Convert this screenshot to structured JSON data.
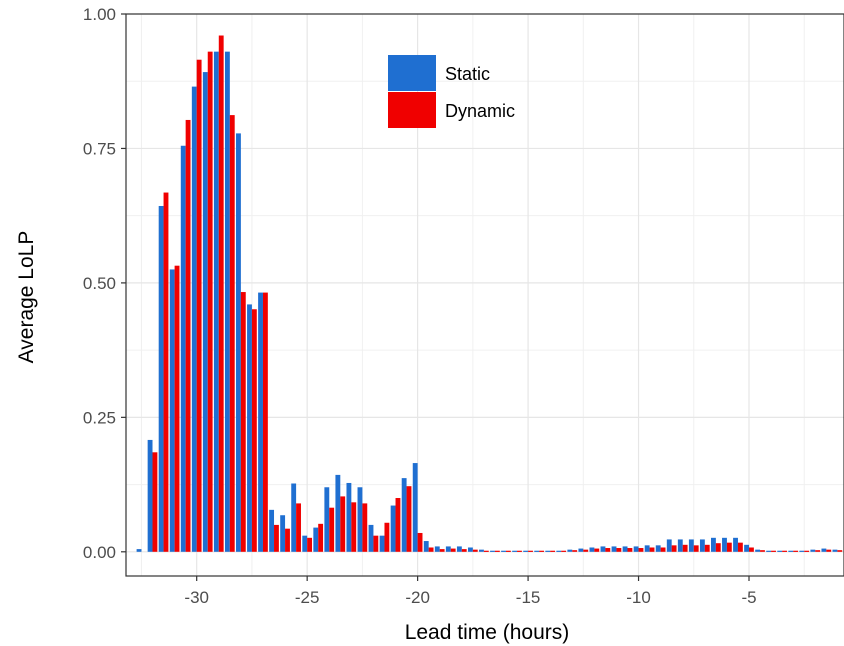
{
  "chart_data": {
    "type": "bar",
    "xlabel": "Lead time (hours)",
    "ylabel": "Average LoLP",
    "xlim": [
      -33.2,
      -0.7
    ],
    "ylim": [
      -0.045,
      1.0
    ],
    "x_ticks": [
      -30,
      -25,
      -20,
      -15,
      -10,
      -5
    ],
    "x_tick_labels": [
      "-30",
      "-25",
      "-20",
      "-15",
      "-10",
      "-5"
    ],
    "y_ticks": [
      0.0,
      0.25,
      0.5,
      0.75,
      1.0
    ],
    "y_tick_labels": [
      "0.00",
      "0.25",
      "0.50",
      "0.75",
      "1.00"
    ],
    "grid": true,
    "legend_position": "top-center",
    "x": [
      -32.5,
      -32.0,
      -31.5,
      -31.0,
      -30.5,
      -30.0,
      -29.5,
      -29.0,
      -28.5,
      -28.0,
      -27.5,
      -27.0,
      -26.5,
      -26.0,
      -25.5,
      -25.0,
      -24.5,
      -24.0,
      -23.5,
      -23.0,
      -22.5,
      -22.0,
      -21.5,
      -21.0,
      -20.5,
      -20.0,
      -19.5,
      -19.0,
      -18.5,
      -18.0,
      -17.5,
      -17.0,
      -16.5,
      -16.0,
      -15.5,
      -15.0,
      -14.5,
      -14.0,
      -13.5,
      -13.0,
      -12.5,
      -12.0,
      -11.5,
      -11.0,
      -10.5,
      -10.0,
      -9.5,
      -9.0,
      -8.5,
      -8.0,
      -7.5,
      -7.0,
      -6.5,
      -6.0,
      -5.5,
      -5.0,
      -4.5,
      -4.0,
      -3.5,
      -3.0,
      -2.5,
      -2.0,
      -1.5,
      -1.0
    ],
    "series": [
      {
        "name": "Static",
        "color": "#1f6fd1",
        "values": [
          0.005,
          0.208,
          0.643,
          0.525,
          0.755,
          0.865,
          0.892,
          0.93,
          0.93,
          0.778,
          0.46,
          0.482,
          0.078,
          0.068,
          0.127,
          0.03,
          0.045,
          0.12,
          0.143,
          0.128,
          0.12,
          0.05,
          0.03,
          0.086,
          0.137,
          0.165,
          0.02,
          0.01,
          0.01,
          0.01,
          0.008,
          0.004,
          0.002,
          0.002,
          0.002,
          0.002,
          0.002,
          0.002,
          0.002,
          0.004,
          0.006,
          0.008,
          0.01,
          0.01,
          0.01,
          0.01,
          0.012,
          0.012,
          0.023,
          0.023,
          0.023,
          0.023,
          0.026,
          0.026,
          0.026,
          0.013,
          0.004,
          0.002,
          0.002,
          0.002,
          0.002,
          0.004,
          0.006,
          0.004
        ]
      },
      {
        "name": "Dynamic",
        "color": "#f00000",
        "values": [
          0.0,
          0.185,
          0.668,
          0.532,
          0.803,
          0.915,
          0.93,
          0.96,
          0.812,
          0.483,
          0.451,
          0.482,
          0.05,
          0.043,
          0.09,
          0.026,
          0.052,
          0.082,
          0.103,
          0.092,
          0.09,
          0.03,
          0.054,
          0.1,
          0.122,
          0.035,
          0.008,
          0.005,
          0.006,
          0.005,
          0.004,
          0.002,
          0.002,
          0.002,
          0.002,
          0.002,
          0.002,
          0.002,
          0.002,
          0.003,
          0.004,
          0.006,
          0.007,
          0.007,
          0.007,
          0.007,
          0.008,
          0.008,
          0.012,
          0.013,
          0.012,
          0.013,
          0.016,
          0.017,
          0.017,
          0.008,
          0.003,
          0.002,
          0.002,
          0.002,
          0.002,
          0.003,
          0.004,
          0.003
        ]
      }
    ]
  }
}
